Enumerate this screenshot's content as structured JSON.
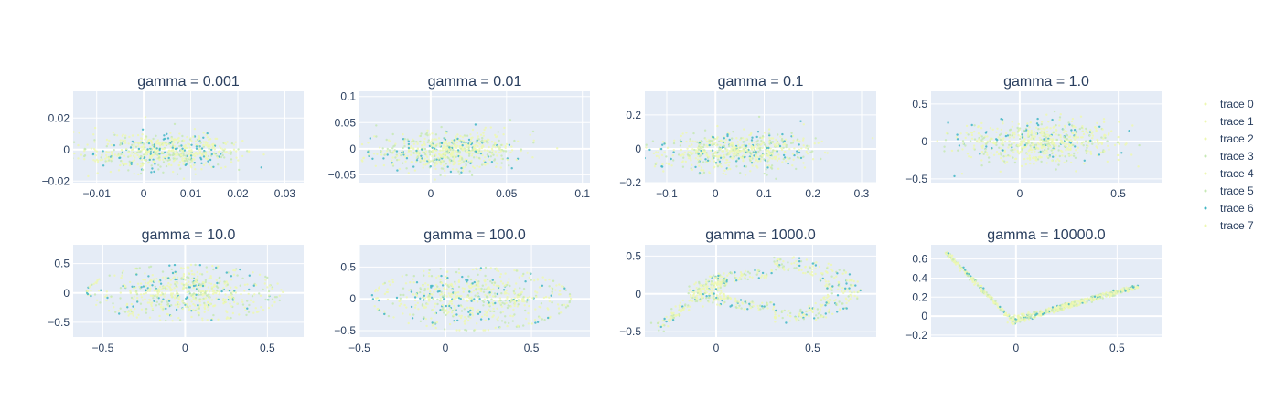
{
  "chart_data": {
    "type": "scatter",
    "legend": {
      "placement": "right",
      "entries": [
        "trace 0",
        "trace 1",
        "trace 2",
        "trace 3",
        "trace 4",
        "trace 5",
        "trace 6",
        "trace 7"
      ]
    },
    "grid": true,
    "colors": {
      "plot_bg": "#e5ecf6",
      "grid": "#ffffff",
      "text": "#2a3f5f",
      "point_light": "#edf8b1",
      "point_mid": "#c7e9b4",
      "point_dark": "#41b6c4",
      "point_darkest": "#225ea8"
    },
    "subplots": [
      {
        "title": "gamma = 0.001",
        "shape": "blob",
        "xlim": [
          -0.015,
          0.034
        ],
        "ylim": [
          -0.021,
          0.037
        ],
        "xticks": [
          -0.01,
          0,
          0.01,
          0.02,
          0.03
        ],
        "xticklabels": [
          "−0.01",
          "0",
          "0.01",
          "0.02",
          "0.03"
        ],
        "yticks": [
          -0.02,
          0,
          0.02
        ],
        "yticklabels": [
          "−0.02",
          "0",
          "0.02"
        ],
        "cx": 0.002,
        "cy": 0.0,
        "sx": 0.008,
        "sy": 0.006
      },
      {
        "title": "gamma = 0.01",
        "shape": "blob",
        "xlim": [
          -0.047,
          0.105
        ],
        "ylim": [
          -0.065,
          0.11
        ],
        "xticks": [
          0,
          0.05,
          0.1
        ],
        "xticklabels": [
          "0",
          "0.05",
          "0.1"
        ],
        "yticks": [
          -0.05,
          0,
          0.05,
          0.1
        ],
        "yticklabels": [
          "−0.05",
          "0",
          "0.05",
          "0.1"
        ],
        "cx": 0.005,
        "cy": 0.0,
        "sx": 0.025,
        "sy": 0.018
      },
      {
        "title": "gamma = 0.1",
        "shape": "blob",
        "xlim": [
          -0.145,
          0.33
        ],
        "ylim": [
          -0.2,
          0.34
        ],
        "xticks": [
          -0.1,
          0,
          0.1,
          0.2,
          0.3
        ],
        "xticklabels": [
          "−0.1",
          "0",
          "0.1",
          "0.2",
          "0.3"
        ],
        "yticks": [
          -0.2,
          0,
          0.2
        ],
        "yticklabels": [
          "−0.2",
          "0",
          "0.2"
        ],
        "cx": 0.02,
        "cy": 0.0,
        "sx": 0.08,
        "sy": 0.055
      },
      {
        "title": "gamma = 1.0",
        "shape": "blob",
        "xlim": [
          -0.45,
          0.72
        ],
        "ylim": [
          -0.55,
          0.67
        ],
        "xticks": [
          0,
          0.5
        ],
        "xticklabels": [
          "0",
          "0.5"
        ],
        "yticks": [
          -0.5,
          0,
          0.5
        ],
        "yticklabels": [
          "−0.5",
          "0",
          "0.5"
        ],
        "cx": 0.05,
        "cy": 0.02,
        "sx": 0.2,
        "sy": 0.14
      },
      {
        "title": "gamma = 10.0",
        "shape": "ellipse",
        "xlim": [
          -0.68,
          0.72
        ],
        "ylim": [
          -0.75,
          0.82
        ],
        "xticks": [
          -0.5,
          0,
          0.5
        ],
        "xticklabels": [
          "−0.5",
          "0",
          "0.5"
        ],
        "yticks": [
          -0.5,
          0,
          0.5
        ],
        "yticklabels": [
          "−0.5",
          "0",
          "0.5"
        ],
        "cx": 0.0,
        "cy": 0.0,
        "rx": 0.6,
        "ry": 0.6
      },
      {
        "title": "gamma = 100.0",
        "shape": "ellipse",
        "xlim": [
          -0.5,
          0.84
        ],
        "ylim": [
          -0.6,
          0.85
        ],
        "xticks": [
          -0.5,
          0,
          0.5
        ],
        "xticklabels": [
          "−0.5",
          "0",
          "0.5"
        ],
        "yticks": [
          -0.5,
          0,
          0.5
        ],
        "yticklabels": [
          "−0.5",
          "0",
          "0.5"
        ],
        "cx": 0.15,
        "cy": 0.0,
        "rx": 0.58,
        "ry": 0.62
      },
      {
        "title": "gamma = 1000.0",
        "shape": "leaf",
        "xlim": [
          -0.37,
          0.83
        ],
        "ylim": [
          -0.57,
          0.65
        ],
        "xticks": [
          0,
          0.5
        ],
        "xticklabels": [
          "0",
          "0.5"
        ],
        "yticks": [
          -0.5,
          0,
          0.5
        ],
        "yticklabels": [
          "−0.5",
          "0",
          "0.5"
        ],
        "cx": 0.3,
        "cy": 0.05,
        "rx": 0.45,
        "ry": 0.45
      },
      {
        "title": "gamma = 10000.0",
        "shape": "v",
        "xlim": [
          -0.42,
          0.72
        ],
        "ylim": [
          -0.22,
          0.75
        ],
        "xticks": [
          0,
          0.5
        ],
        "xticklabels": [
          "0",
          "0.5"
        ],
        "yticks": [
          -0.2,
          0,
          0.2,
          0.4,
          0.6
        ],
        "yticklabels": [
          "−0.2",
          "0",
          "0.2",
          "0.4",
          "0.6"
        ]
      }
    ]
  }
}
